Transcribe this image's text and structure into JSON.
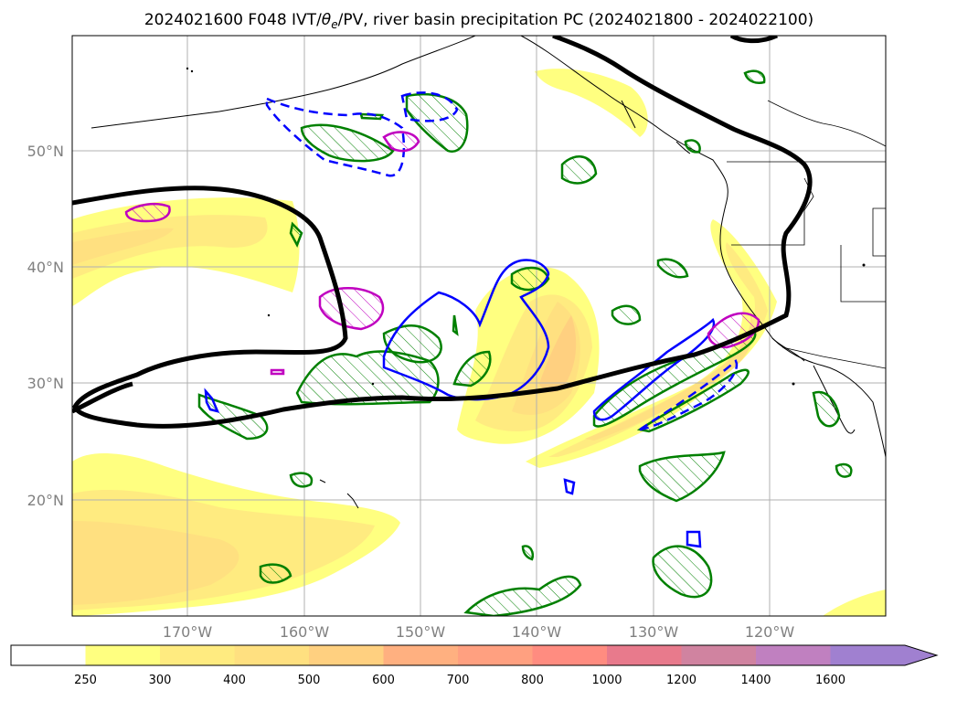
{
  "title": {
    "pre": "2024021600 F048 IVT/",
    "theta": "θ",
    "sub": "e",
    "post": "/PV, river basin precipitation PC (2024021800 - 2024022100)"
  },
  "map": {
    "lon_labels": [
      "170°W",
      "160°W",
      "150°W",
      "140°W",
      "130°W",
      "120°W"
    ],
    "lat_labels": [
      "50°N",
      "40°N",
      "30°N",
      "20°N"
    ],
    "grid": true
  },
  "colorbar": {
    "levels": [
      "250",
      "300",
      "400",
      "500",
      "600",
      "700",
      "800",
      "1000",
      "1200",
      "1400",
      "1600"
    ],
    "colors": [
      "#ffffff",
      "#ffff80",
      "#ffeb80",
      "#ffe080",
      "#ffd080",
      "#ffb080",
      "#ffa080",
      "#ff8c80",
      "#e87a8c",
      "#d083a0",
      "#c080c0",
      "#a080d0"
    ],
    "extend": "max"
  },
  "contour_colors": {
    "pv": "#000000",
    "theta_e": "#0000ff",
    "precip": "#008000",
    "ivt_max": "#c000c0"
  }
}
